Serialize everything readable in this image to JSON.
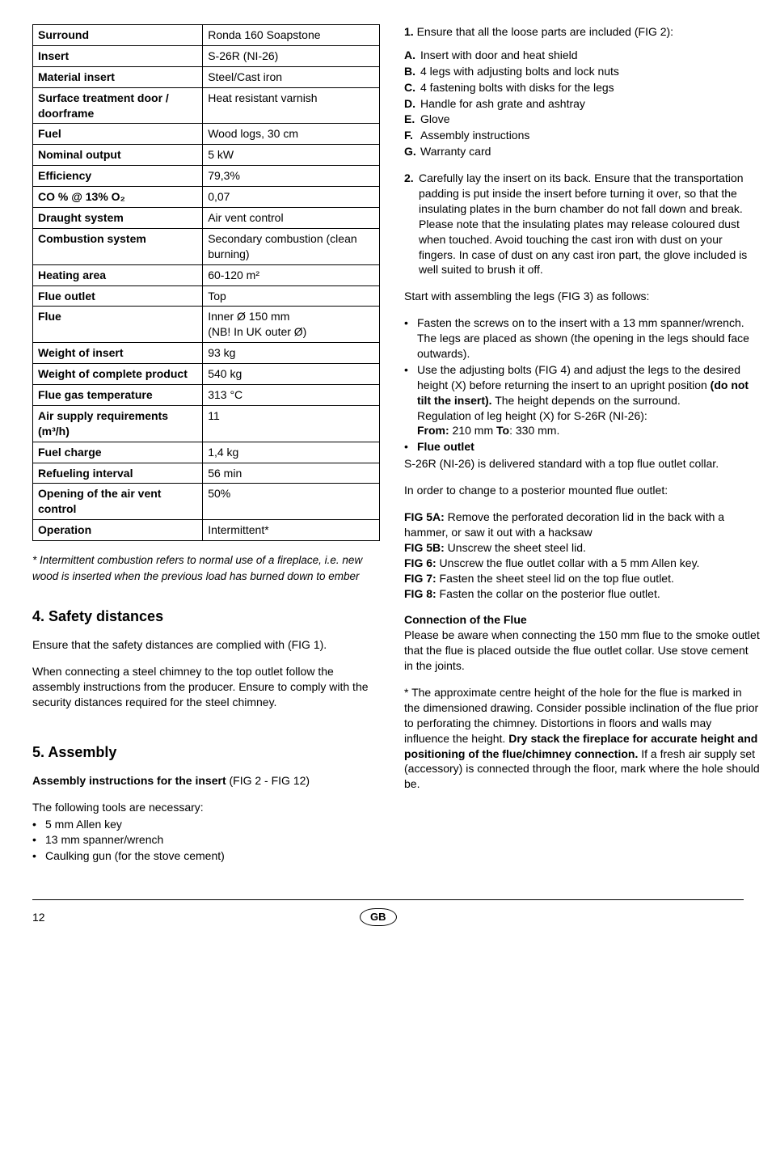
{
  "specTable": {
    "rows": [
      {
        "label": "Surround",
        "value": "Ronda 160 Soapstone"
      },
      {
        "label": "Insert",
        "value": "S-26R (NI-26)"
      },
      {
        "label": "Material insert",
        "value": "Steel/Cast iron"
      },
      {
        "label": "Surface treatment door / doorframe",
        "value": "Heat resistant varnish"
      },
      {
        "label": "Fuel",
        "value": "Wood logs, 30 cm"
      },
      {
        "label": "Nominal output",
        "value": "5 kW"
      },
      {
        "label": "Efficiency",
        "value": "79,3%"
      },
      {
        "label": "CO % @ 13% O₂",
        "value": "0,07"
      },
      {
        "label": "Draught system",
        "value": "Air vent control"
      },
      {
        "label": "Combustion system",
        "value": "Secondary combustion (clean burning)"
      },
      {
        "label": "Heating area",
        "value": "60-120 m²"
      },
      {
        "label": "Flue outlet",
        "value": "Top"
      },
      {
        "label": "Flue",
        "value": "Inner Ø 150 mm\n(NB! In UK outer Ø)"
      },
      {
        "label": "Weight of insert",
        "value": "93 kg"
      },
      {
        "label": "Weight of complete product",
        "value": "540 kg"
      },
      {
        "label": "Flue gas temperature",
        "value": "313 °C"
      },
      {
        "label": "Air supply requirements (m³/h)",
        "value": "11"
      },
      {
        "label": "Fuel charge",
        "value": "1,4 kg"
      },
      {
        "label": "Refueling interval",
        "value": "56 min"
      },
      {
        "label": "Opening of the air vent control",
        "value": "50%"
      },
      {
        "label": "Operation",
        "value": "Intermittent*"
      }
    ]
  },
  "footnote": "* Intermittent combustion refers to normal use of a fireplace, i.e. new wood is inserted when the previous load has burned down to ember",
  "section4": {
    "title": "4. Safety distances",
    "para1": "Ensure that the safety distances are complied with (FIG 1).",
    "para2": "When connecting a steel chimney to the top outlet follow the assembly instructions from the producer. Ensure to comply with the  security distances required for the steel chimney."
  },
  "section5": {
    "title": "5. Assembly",
    "sub1_prefix": "Assembly instructions for the insert ",
    "sub1_suffix": "(FIG 2 - FIG 12)",
    "toolsIntro": "The following tools are necessary:",
    "tools": [
      "5 mm Allen key",
      "13 mm spanner/wrench",
      "Caulking gun (for the stove cement)"
    ]
  },
  "right": {
    "step1_num": "1.",
    "step1_text": "Ensure that all the loose parts are included (FIG 2):",
    "parts": [
      {
        "l": "A.",
        "t": "Insert with door and heat shield"
      },
      {
        "l": "B.",
        "t": "4 legs with adjusting bolts and lock nuts"
      },
      {
        "l": "C.",
        "t": "4 fastening bolts with disks for the legs"
      },
      {
        "l": "D.",
        "t": "Handle for ash grate and ashtray"
      },
      {
        "l": "E.",
        "t": "Glove"
      },
      {
        "l": "F.",
        "t": "Assembly instructions"
      },
      {
        "l": "G.",
        "t": "Warranty card"
      }
    ],
    "step2_num": "2.",
    "step2_text": "Carefully lay the insert on its back. Ensure that the transportation padding is put inside the insert before turning it over, so that the insulating plates in the burn chamber do not fall down and break. Please note that the insulating plates may release coloured dust when touched. Avoid touching the cast iron with dust on your fingers. In case of dust on any cast iron part, the glove included is well suited to brush it off.",
    "startAssembling": "Start with assembling the legs (FIG 3) as follows:",
    "bullet1": "Fasten the screws on to the insert with a 13 mm spanner/wrench. The legs are placed as shown (the opening in the legs should face outwards).",
    "bullet2_a": "Use the adjusting bolts (FIG 4) and adjust the legs to the desired height (X) before returning the insert to an upright position ",
    "bullet2_bold": "(do not tilt the insert).",
    "bullet2_b": " The height depends on the surround.",
    "bullet2_line2": "Regulation of leg height (X) for S-26R (NI-26):",
    "bullet2_from_l": "From:",
    "bullet2_from_v": " 210 mm  ",
    "bullet2_to_l": "To",
    "bullet2_to_v": ": 330 mm.",
    "bullet3": "Flue outlet",
    "flueOutletText": "S-26R (NI-26)  is delivered standard with a top flue outlet collar.",
    "posteriorIntro": "In order to change to a posterior mounted flue outlet:",
    "fig5a_l": "FIG 5A:",
    "fig5a_t": " Remove the perforated decoration lid in the back with a hammer, or saw it out with a hacksaw",
    "fig5b_l": "FIG 5B:",
    "fig5b_t": " Unscrew the sheet steel lid.",
    "fig6_l": "FIG 6:",
    "fig6_t": " Unscrew the flue outlet collar with a 5 mm Allen key.",
    "fig7_l": "FIG 7:",
    "fig7_t": " Fasten the sheet steel lid on the top flue outlet.",
    "fig8_l": "FIG 8:",
    "fig8_t": " Fasten the collar on the posterior flue outlet.",
    "connTitle": "Connection of the Flue",
    "connText": "Please be aware when connecting the 150 mm flue to the smoke outlet that the flue is placed outside the flue outlet collar. Use stove cement in the joints.",
    "star_a": "* The approximate centre height of the hole for the flue is marked in the dimensioned drawing. Consider possible inclination of the flue prior to perforating the chimney.  Distortions in floors and walls may influence the height. ",
    "star_bold": "Dry stack the fireplace for accurate height and positioning of the flue/chimney connection.",
    "star_b": " If a fresh air supply set (accessory) is connected through the floor, mark where the hole should be."
  },
  "footer": {
    "page": "12",
    "badge": "GB"
  }
}
